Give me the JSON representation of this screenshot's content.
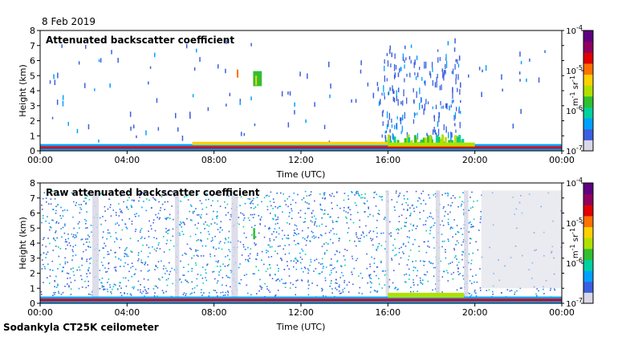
{
  "header": {
    "date": "8 Feb 2019"
  },
  "footer": {
    "instrument": "Sodankyla CT25K ceilometer"
  },
  "colors": {
    "background": "#ffffff",
    "no_data": "#d8d8e6",
    "axis": "#000000"
  },
  "chart_data": [
    {
      "type": "heatmap",
      "title": "Attenuated backscatter coefficient",
      "xlabel": "Time (UTC)",
      "ylabel": "Height (km)",
      "x_ticks": [
        "00:00",
        "04:00",
        "08:00",
        "12:00",
        "16:00",
        "20:00",
        "00:00"
      ],
      "y_ticks": [
        0,
        1,
        2,
        3,
        4,
        5,
        6,
        7,
        8
      ],
      "xlim_hours": [
        0,
        24
      ],
      "ylim_km": [
        0,
        8
      ],
      "colorbar": {
        "ticks": [
          "10",
          "10",
          "10",
          "10"
        ],
        "exponents": [
          "-4",
          "-5",
          "-6",
          "-7"
        ],
        "label_unit": "m",
        "label_exp1": "-1",
        "label_sr": " sr",
        "label_exp2": "-1",
        "scale": "log",
        "range": [
          1e-07,
          0.0001
        ],
        "colormap": [
          "#d8d8e6",
          "#3b5fe0",
          "#00a0ff",
          "#00d0a0",
          "#30c030",
          "#b0e000",
          "#ffd000",
          "#ff7000",
          "#e00000",
          "#900060",
          "#600080"
        ]
      },
      "features": [
        {
          "label": "boundary layer",
          "start_hour": 0,
          "end_hour": 24,
          "top_km": 0.4
        },
        {
          "label": "cloud streak",
          "start_hour": 9.8,
          "end_hour": 10.2,
          "bottom_km": 4.3,
          "top_km": 5.3
        },
        {
          "label": "low cloud",
          "start_hour": 15.8,
          "end_hour": 19.5,
          "bottom_km": 0.2,
          "top_km": 1.0
        }
      ]
    },
    {
      "type": "heatmap",
      "title": "Raw attenuated backscatter coefficient",
      "xlabel": "Time (UTC)",
      "ylabel": "Height (km)",
      "x_ticks": [
        "00:00",
        "04:00",
        "08:00",
        "12:00",
        "16:00",
        "20:00",
        "00:00"
      ],
      "y_ticks": [
        0,
        1,
        2,
        3,
        4,
        5,
        6,
        7,
        8
      ],
      "xlim_hours": [
        0,
        24
      ],
      "ylim_km": [
        0,
        8
      ],
      "colorbar": {
        "ticks": [
          "10",
          "10",
          "10",
          "10"
        ],
        "exponents": [
          "-4",
          "-5",
          "-6",
          "-7"
        ],
        "label_unit": "m",
        "label_exp1": "-1",
        "label_sr": " sr",
        "label_exp2": "-1",
        "scale": "log",
        "range": [
          1e-07,
          0.0001
        ],
        "colormap": [
          "#d8d8e6",
          "#3b5fe0",
          "#00a0ff",
          "#00d0a0",
          "#30c030",
          "#b0e000",
          "#ffd000",
          "#ff7000",
          "#e00000",
          "#900060",
          "#600080"
        ]
      },
      "features": [
        {
          "label": "noise field",
          "start_hour": 0,
          "end_hour": 24,
          "bottom_km": 0.5,
          "top_km": 7.5
        },
        {
          "label": "quiet period",
          "start_hour": 20.3,
          "end_hour": 24,
          "bottom_km": 1.0,
          "top_km": 7.5
        }
      ]
    }
  ]
}
